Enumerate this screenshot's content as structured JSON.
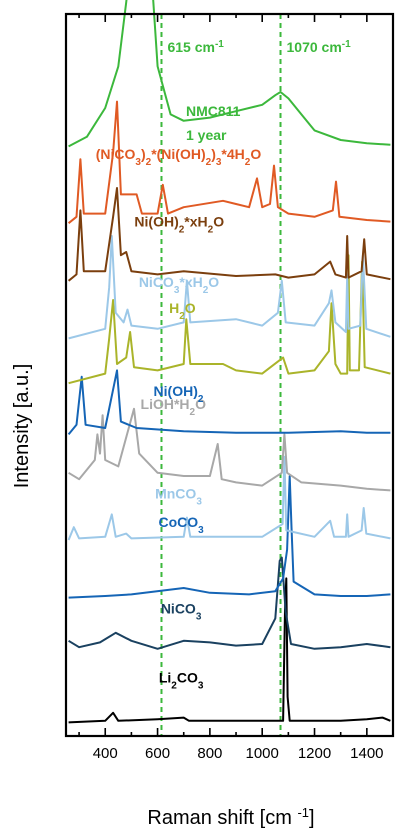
{
  "chart_data": {
    "type": "line",
    "xlabel": "Raman shift [cm",
    "xlabel_sup": "-1",
    "xlabel_end": "]",
    "ylabel": "Intensity [a.u.]",
    "xlim": [
      250,
      1500
    ],
    "xticks": [
      400,
      600,
      800,
      1000,
      1200,
      1400
    ],
    "yticks_visible": false,
    "grid": false,
    "reference_lines": [
      {
        "x": 615,
        "label": "615 cm",
        "unit_sup": "-1",
        "color": "#3cb83c"
      },
      {
        "x": 1070,
        "label": "1070 cm",
        "unit_sup": "-1",
        "color": "#3cb83c"
      }
    ],
    "annotation": {
      "lines": [
        "NMC811",
        "1 year"
      ],
      "color": "#3cb83c"
    },
    "series": [
      {
        "name_parts": [
          [
            "Li",
            ""
          ],
          [
            "2",
            "sub"
          ],
          [
            "CO",
            ""
          ],
          [
            "3",
            "sub"
          ]
        ],
        "color": "#000000",
        "offset": 0.3,
        "points": [
          [
            260,
            0
          ],
          [
            400,
            0.05
          ],
          [
            430,
            0.3
          ],
          [
            450,
            0.05
          ],
          [
            600,
            0.1
          ],
          [
            700,
            0.15
          ],
          [
            720,
            0.05
          ],
          [
            900,
            0.05
          ],
          [
            1080,
            0.05
          ],
          [
            1087,
            3.5
          ],
          [
            1092,
            4.5
          ],
          [
            1097,
            0.8
          ],
          [
            1105,
            0.05
          ],
          [
            1300,
            0.05
          ],
          [
            1400,
            0.1
          ],
          [
            1460,
            0.15
          ],
          [
            1490,
            0.05
          ]
        ]
      },
      {
        "name_parts": [
          [
            "NiCO",
            ""
          ],
          [
            "3",
            "sub"
          ]
        ],
        "color": "#1a4160",
        "offset": 2.55,
        "points": [
          [
            260,
            0.3
          ],
          [
            300,
            0.1
          ],
          [
            380,
            0.25
          ],
          [
            440,
            0.55
          ],
          [
            500,
            0.3
          ],
          [
            600,
            0.05
          ],
          [
            700,
            0.3
          ],
          [
            800,
            0.25
          ],
          [
            900,
            0.15
          ],
          [
            1000,
            0.2
          ],
          [
            1050,
            1.0
          ],
          [
            1067,
            2.8
          ],
          [
            1075,
            2.9
          ],
          [
            1090,
            1.2
          ],
          [
            1110,
            0.2
          ],
          [
            1200,
            0.05
          ],
          [
            1300,
            0.1
          ],
          [
            1400,
            0.2
          ],
          [
            1490,
            0.1
          ]
        ]
      },
      {
        "name_parts": [
          [
            "CoCO",
            ""
          ],
          [
            "3",
            "sub"
          ]
        ],
        "color": "#1565b6",
        "offset": 4.2,
        "points": [
          [
            260,
            0
          ],
          [
            400,
            0.05
          ],
          [
            500,
            0.1
          ],
          [
            700,
            0.3
          ],
          [
            800,
            0.15
          ],
          [
            950,
            0.1
          ],
          [
            1050,
            0.2
          ],
          [
            1080,
            0.6
          ],
          [
            1095,
            1.5
          ],
          [
            1105,
            3.8
          ],
          [
            1112,
            2.2
          ],
          [
            1120,
            0.5
          ],
          [
            1200,
            0.1
          ],
          [
            1300,
            0.05
          ],
          [
            1400,
            0.05
          ],
          [
            1490,
            0.1
          ]
        ]
      },
      {
        "name_parts": [
          [
            "MnCO",
            ""
          ],
          [
            "3",
            "sub"
          ]
        ],
        "color": "#9cc8e8",
        "offset": 6.0,
        "points": [
          [
            260,
            0
          ],
          [
            280,
            0.4
          ],
          [
            300,
            0.05
          ],
          [
            400,
            0.1
          ],
          [
            425,
            0.8
          ],
          [
            440,
            0.1
          ],
          [
            480,
            0.2
          ],
          [
            500,
            0.05
          ],
          [
            700,
            0.1
          ],
          [
            712,
            0.7
          ],
          [
            725,
            0.1
          ],
          [
            1000,
            0.1
          ],
          [
            1078,
            0.5
          ],
          [
            1085,
            2.6
          ],
          [
            1092,
            0.3
          ],
          [
            1200,
            0.1
          ],
          [
            1260,
            0.6
          ],
          [
            1275,
            0.1
          ],
          [
            1320,
            0.1
          ],
          [
            1325,
            0.8
          ],
          [
            1330,
            0.1
          ],
          [
            1380,
            0.3
          ],
          [
            1388,
            1.0
          ],
          [
            1398,
            0.2
          ],
          [
            1490,
            0.05
          ]
        ]
      },
      {
        "name_parts": [
          [
            "LiOH*H",
            ""
          ],
          [
            "2",
            "sub"
          ],
          [
            "O",
            ""
          ]
        ],
        "color": "#a8a8a8",
        "offset": 7.5,
        "points": [
          [
            260,
            0.6
          ],
          [
            300,
            0.4
          ],
          [
            360,
            1.0
          ],
          [
            370,
            1.8
          ],
          [
            380,
            1.2
          ],
          [
            390,
            2.4
          ],
          [
            400,
            1.0
          ],
          [
            450,
            0.8
          ],
          [
            510,
            2.6
          ],
          [
            530,
            1.2
          ],
          [
            600,
            0.6
          ],
          [
            700,
            0.5
          ],
          [
            800,
            0.5
          ],
          [
            830,
            1.5
          ],
          [
            845,
            0.4
          ],
          [
            900,
            0.3
          ],
          [
            1000,
            0.2
          ],
          [
            1075,
            0.6
          ],
          [
            1085,
            1.8
          ],
          [
            1095,
            0.6
          ],
          [
            1150,
            0.3
          ],
          [
            1300,
            0.2
          ],
          [
            1400,
            0.1
          ],
          [
            1490,
            0.05
          ]
        ]
      },
      {
        "name_parts": [
          [
            "Ni(OH)",
            ""
          ],
          [
            "2",
            "sub"
          ]
        ],
        "color": "#1565b6",
        "offset": 9.3,
        "points": [
          [
            260,
            0
          ],
          [
            290,
            0.3
          ],
          [
            310,
            1.8
          ],
          [
            325,
            0.3
          ],
          [
            400,
            0.2
          ],
          [
            430,
            1.4
          ],
          [
            445,
            2.0
          ],
          [
            460,
            0.4
          ],
          [
            520,
            0.2
          ],
          [
            700,
            0.1
          ],
          [
            900,
            0.05
          ],
          [
            1100,
            0.05
          ],
          [
            1300,
            0.1
          ],
          [
            1400,
            0.05
          ],
          [
            1490,
            0.05
          ]
        ]
      },
      {
        "name_parts": [
          [
            "H",
            ""
          ],
          [
            "2",
            "sub"
          ],
          [
            "O",
            ""
          ]
        ],
        "color": "#aab42a",
        "offset": 10.9,
        "points": [
          [
            260,
            0
          ],
          [
            400,
            0.3
          ],
          [
            415,
            1.4
          ],
          [
            430,
            2.6
          ],
          [
            445,
            0.6
          ],
          [
            480,
            0.8
          ],
          [
            495,
            1.6
          ],
          [
            510,
            0.5
          ],
          [
            600,
            0.4
          ],
          [
            700,
            0.6
          ],
          [
            710,
            2.0
          ],
          [
            725,
            0.6
          ],
          [
            850,
            0.6
          ],
          [
            900,
            0.4
          ],
          [
            1000,
            0.3
          ],
          [
            1080,
            0.8
          ],
          [
            1100,
            0.3
          ],
          [
            1200,
            0.4
          ],
          [
            1255,
            1.0
          ],
          [
            1265,
            2.5
          ],
          [
            1280,
            0.6
          ],
          [
            1300,
            0.3
          ],
          [
            1325,
            0.3
          ],
          [
            1330,
            4.0
          ],
          [
            1335,
            0.4
          ],
          [
            1370,
            0.4
          ],
          [
            1382,
            3.8
          ],
          [
            1392,
            0.5
          ],
          [
            1490,
            0.3
          ]
        ]
      },
      {
        "name_parts": [
          [
            "NiCO",
            ""
          ],
          [
            "3",
            "sub"
          ],
          [
            "*xH",
            ""
          ],
          [
            "2",
            "sub"
          ],
          [
            "O",
            ""
          ]
        ],
        "color": "#9cc8e8",
        "offset": 12.3,
        "points": [
          [
            260,
            0
          ],
          [
            400,
            0.3
          ],
          [
            415,
            1.6
          ],
          [
            425,
            3.2
          ],
          [
            440,
            0.8
          ],
          [
            470,
            0.5
          ],
          [
            485,
            0.9
          ],
          [
            500,
            0.4
          ],
          [
            600,
            0.3
          ],
          [
            700,
            0.5
          ],
          [
            712,
            1.8
          ],
          [
            725,
            0.5
          ],
          [
            900,
            0.6
          ],
          [
            1000,
            0.4
          ],
          [
            1060,
            0.8
          ],
          [
            1075,
            1.8
          ],
          [
            1090,
            0.5
          ],
          [
            1200,
            0.4
          ],
          [
            1255,
            1.1
          ],
          [
            1265,
            1.5
          ],
          [
            1280,
            0.5
          ],
          [
            1320,
            0.2
          ],
          [
            1325,
            2.0
          ],
          [
            1330,
            0.3
          ],
          [
            1375,
            0.4
          ],
          [
            1385,
            2.6
          ],
          [
            1398,
            0.3
          ],
          [
            1490,
            0.05
          ]
        ]
      },
      {
        "name_parts": [
          [
            "Ni(OH)",
            ""
          ],
          [
            "2",
            "sub"
          ],
          [
            "*xH",
            ""
          ],
          [
            "2",
            "sub"
          ],
          [
            "O",
            ""
          ]
        ],
        "color": "#7b3f0e",
        "offset": 14.1,
        "points": [
          [
            260,
            0
          ],
          [
            290,
            0.2
          ],
          [
            305,
            2.2
          ],
          [
            318,
            0.3
          ],
          [
            400,
            0.3
          ],
          [
            430,
            2.0
          ],
          [
            445,
            2.9
          ],
          [
            460,
            0.8
          ],
          [
            480,
            0.9
          ],
          [
            500,
            0.3
          ],
          [
            600,
            0.2
          ],
          [
            700,
            0.3
          ],
          [
            900,
            0.15
          ],
          [
            1050,
            0.2
          ],
          [
            1100,
            0.1
          ],
          [
            1200,
            0.2
          ],
          [
            1260,
            0.6
          ],
          [
            1280,
            0.2
          ],
          [
            1320,
            0.1
          ],
          [
            1325,
            1.4
          ],
          [
            1330,
            0.1
          ],
          [
            1380,
            0.3
          ],
          [
            1390,
            1.3
          ],
          [
            1400,
            0.2
          ],
          [
            1490,
            0.05
          ]
        ]
      },
      {
        "name_parts": [
          [
            "(NiCO",
            ""
          ],
          [
            "3",
            "sub"
          ],
          [
            ")",
            ""
          ],
          [
            "2",
            "sub"
          ],
          [
            "*(Ni(OH)",
            ""
          ],
          [
            "2",
            "sub"
          ],
          [
            ")",
            ""
          ],
          [
            "3",
            "sub"
          ],
          [
            "*4H",
            ""
          ],
          [
            "2",
            "sub"
          ],
          [
            "O",
            ""
          ]
        ],
        "color": "#e05a24",
        "offset": 15.9,
        "points": [
          [
            260,
            0
          ],
          [
            290,
            0.2
          ],
          [
            305,
            2.0
          ],
          [
            318,
            0.3
          ],
          [
            400,
            0.3
          ],
          [
            430,
            2.2
          ],
          [
            445,
            3.8
          ],
          [
            460,
            0.9
          ],
          [
            520,
            0.9
          ],
          [
            540,
            0.3
          ],
          [
            600,
            0.3
          ],
          [
            620,
            1.2
          ],
          [
            640,
            0.3
          ],
          [
            700,
            0.5
          ],
          [
            850,
            0.7
          ],
          [
            900,
            0.6
          ],
          [
            950,
            0.5
          ],
          [
            980,
            1.4
          ],
          [
            1000,
            0.5
          ],
          [
            1030,
            0.6
          ],
          [
            1045,
            1.8
          ],
          [
            1060,
            0.5
          ],
          [
            1100,
            0.3
          ],
          [
            1200,
            0.2
          ],
          [
            1270,
            0.4
          ],
          [
            1282,
            1.3
          ],
          [
            1295,
            0.2
          ],
          [
            1400,
            0.1
          ],
          [
            1490,
            0.05
          ]
        ]
      },
      {
        "name_parts": [],
        "color": "#3cb83c",
        "offset": 18.3,
        "points": [
          [
            260,
            0
          ],
          [
            330,
            0.3
          ],
          [
            400,
            1.2
          ],
          [
            450,
            2.5
          ],
          [
            480,
            4.5
          ],
          [
            500,
            6.0
          ],
          [
            515,
            6.5
          ],
          [
            530,
            6.8
          ],
          [
            545,
            6.5
          ],
          [
            560,
            6.4
          ],
          [
            580,
            5.0
          ],
          [
            600,
            2.5
          ],
          [
            650,
            1.0
          ],
          [
            700,
            0.8
          ],
          [
            800,
            0.9
          ],
          [
            900,
            1.1
          ],
          [
            1000,
            1.3
          ],
          [
            1050,
            1.6
          ],
          [
            1070,
            1.7
          ],
          [
            1100,
            1.5
          ],
          [
            1150,
            1.0
          ],
          [
            1200,
            0.5
          ],
          [
            1300,
            0.2
          ],
          [
            1400,
            0.1
          ],
          [
            1490,
            0.05
          ]
        ]
      }
    ],
    "label_colors": {
      "nmc": "#3cb83c"
    }
  }
}
